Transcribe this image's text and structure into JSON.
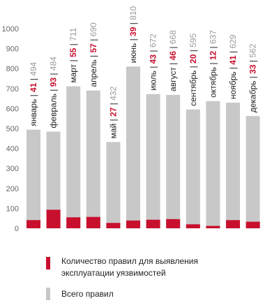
{
  "chart_data": {
    "type": "bar",
    "stacked": true,
    "categories": [
      "январь",
      "февраль",
      "март",
      "апрель",
      "май",
      "июнь",
      "июль",
      "август",
      "сентябрь",
      "октябрь",
      "ноябрь",
      "декабрь"
    ],
    "series": [
      {
        "name": "Количество правил для выявления эксплуатации уязвимостей",
        "values": [
          41,
          93,
          55,
          57,
          27,
          39,
          43,
          46,
          20,
          12,
          41,
          33
        ],
        "color": "#c8102e"
      },
      {
        "name": "Всего правил",
        "values": [
          494,
          484,
          711,
          690,
          432,
          810,
          672,
          668,
          595,
          637,
          629,
          562
        ],
        "color": "#c8c8c8"
      }
    ],
    "ylim": [
      0,
      1000
    ],
    "yticks": [
      0,
      100,
      200,
      300,
      400,
      500,
      600,
      700,
      800,
      900,
      1000
    ],
    "grid": false,
    "legend_position": "bottom"
  },
  "legend": {
    "items": [
      {
        "label": "Количество правил для выявления эксплуатации уязвимостей",
        "color": "#c8102e"
      },
      {
        "label": "Всего правил",
        "color": "#c8c8c8"
      }
    ]
  }
}
